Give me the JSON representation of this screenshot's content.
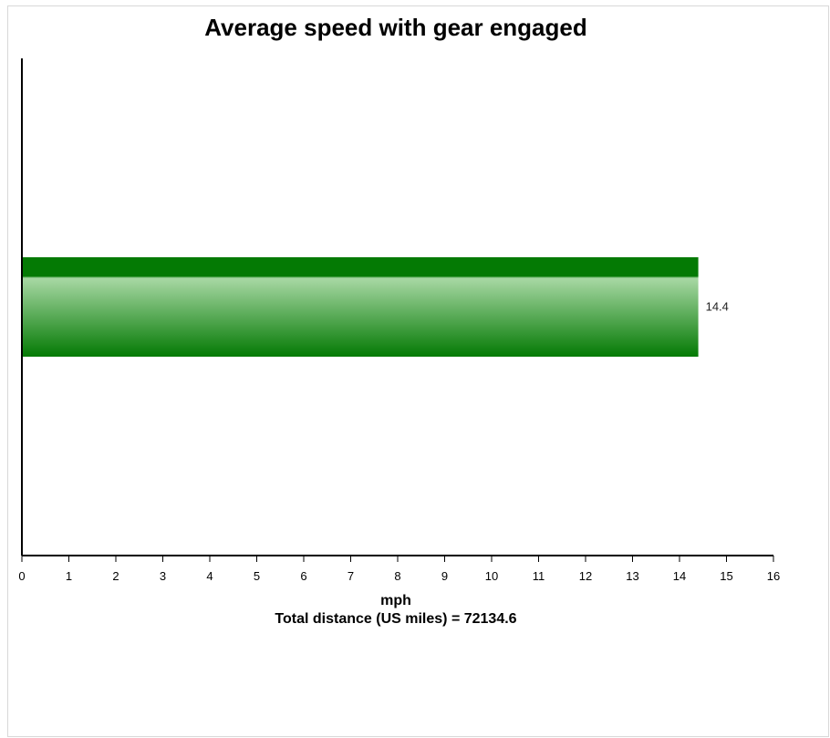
{
  "chart_data": {
    "type": "bar",
    "orientation": "horizontal",
    "title": "Average speed with gear engaged",
    "categories": [
      ""
    ],
    "values": [
      14.4
    ],
    "value_labels": [
      "14.4"
    ],
    "xlabel": "mph",
    "subtitle_below_axis": "Total distance (US miles) = 72134.6",
    "xlim": [
      0,
      16
    ],
    "x_ticks": [
      "0",
      "1",
      "2",
      "3",
      "4",
      "5",
      "6",
      "7",
      "8",
      "9",
      "10",
      "11",
      "12",
      "13",
      "14",
      "15",
      "16"
    ],
    "grid": false,
    "legend": "none",
    "colors": {
      "bar_dark": "#047a04",
      "bar_light": "#a8d8a4",
      "axis": "#000000"
    }
  }
}
